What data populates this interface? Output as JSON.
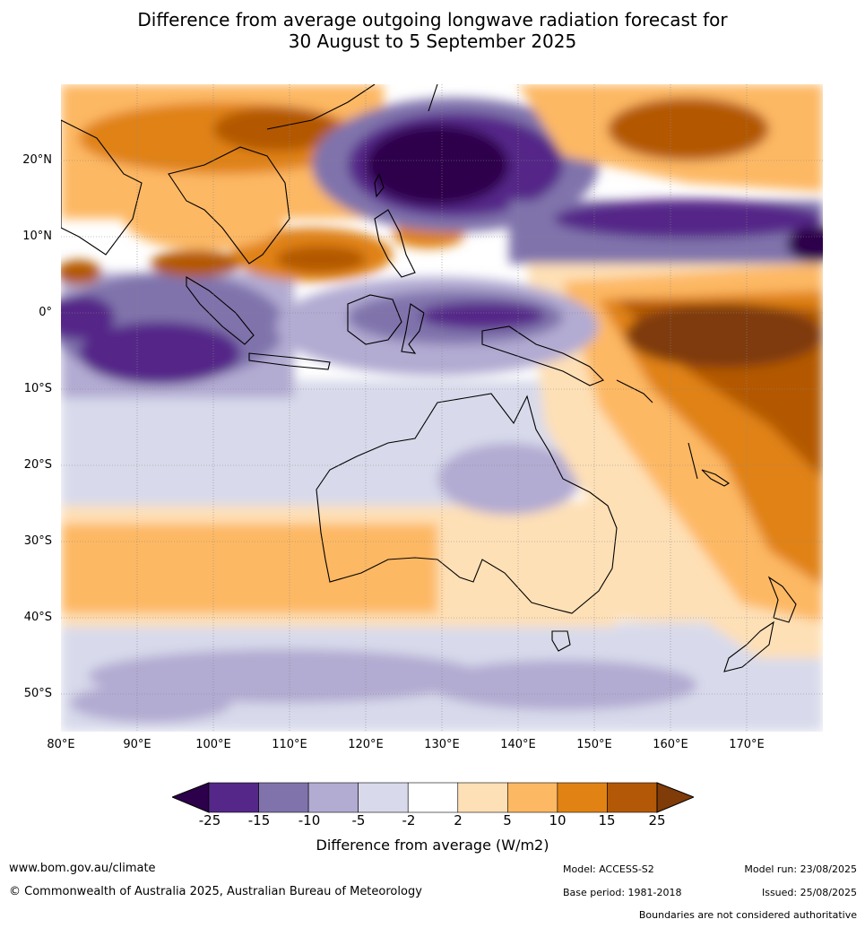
{
  "title": {
    "line1": "Difference from average outgoing longwave radiation forecast for",
    "line2": "30 August to 5 September 2025"
  },
  "axes": {
    "lat_labels": [
      "20°N",
      "10°N",
      "0°",
      "10°S",
      "20°S",
      "30°S",
      "40°S",
      "50°S"
    ],
    "lon_labels": [
      "80°E",
      "90°E",
      "100°E",
      "110°E",
      "120°E",
      "130°E",
      "140°E",
      "150°E",
      "160°E",
      "170°E"
    ]
  },
  "colorbar": {
    "title": "Difference from average (W/m2)",
    "tick_labels": [
      "-25",
      "-15",
      "-10",
      "-5",
      "-2",
      "2",
      "5",
      "10",
      "15",
      "25"
    ],
    "colors": [
      "#2d004b",
      "#542788",
      "#8073ac",
      "#b2abd2",
      "#d8daeb",
      "#ffffff",
      "#fee0b6",
      "#fdb863",
      "#e08214",
      "#b35806",
      "#7f3b08"
    ]
  },
  "footer": {
    "website": "www.bom.gov.au/climate",
    "copyright": "© Commonwealth of Australia 2025, Australian Bureau of Meteorology",
    "model": "Model: ACCESS-S2",
    "base_period": "Base period: 1981-2018",
    "model_run": "Model run: 23/08/2025",
    "issued": "Issued: 25/08/2025",
    "disclaimer": "Boundaries are not considered authoritative"
  }
}
